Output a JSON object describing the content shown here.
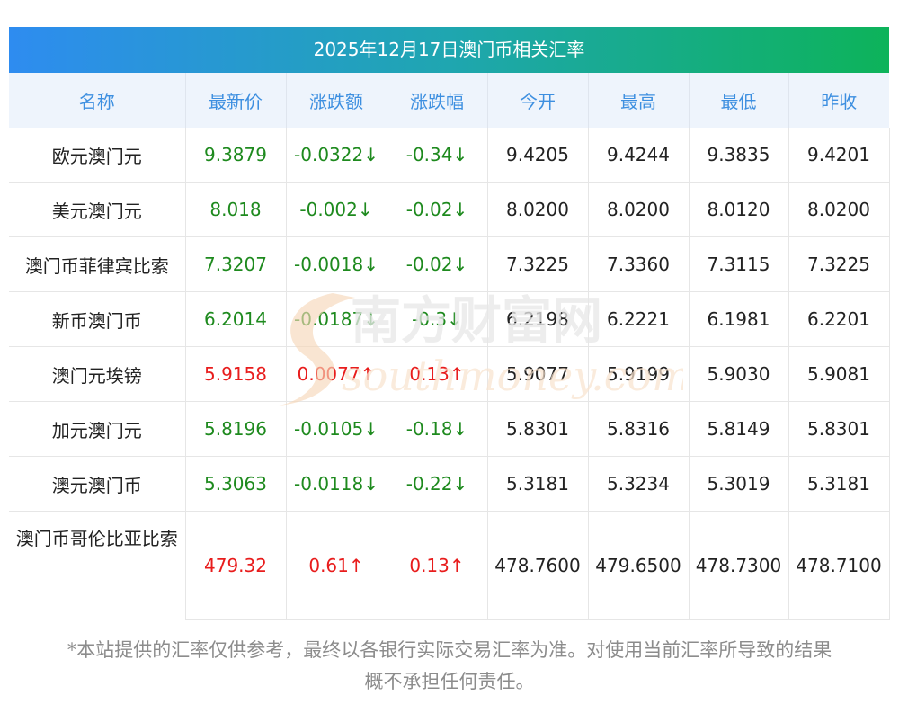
{
  "title": "2025年12月17日澳门币相关汇率",
  "headers": [
    "名称",
    "最新价",
    "涨跌额",
    "涨跌幅",
    "今开",
    "最高",
    "最低",
    "昨收"
  ],
  "rows": [
    {
      "name": "欧元澳门元",
      "latest": "9.3879",
      "change": "-0.0322↓",
      "pct": "-0.34↓",
      "open": "9.4205",
      "high": "9.4244",
      "low": "9.3835",
      "prev": "9.4201",
      "trend": "down"
    },
    {
      "name": "美元澳门元",
      "latest": "8.018",
      "change": "-0.002↓",
      "pct": "-0.02↓",
      "open": "8.0200",
      "high": "8.0200",
      "low": "8.0120",
      "prev": "8.0200",
      "trend": "down"
    },
    {
      "name": "澳门币菲律宾比索",
      "latest": "7.3207",
      "change": "-0.0018↓",
      "pct": "-0.02↓",
      "open": "7.3225",
      "high": "7.3360",
      "low": "7.3115",
      "prev": "7.3225",
      "trend": "down"
    },
    {
      "name": "新币澳门币",
      "latest": "6.2014",
      "change": "-0.0187↓",
      "pct": "-0.3↓",
      "open": "6.2198",
      "high": "6.2221",
      "low": "6.1981",
      "prev": "6.2201",
      "trend": "down"
    },
    {
      "name": "澳门元埃镑",
      "latest": "5.9158",
      "change": "0.0077↑",
      "pct": "0.13↑",
      "open": "5.9077",
      "high": "5.9199",
      "low": "5.9030",
      "prev": "5.9081",
      "trend": "up"
    },
    {
      "name": "加元澳门元",
      "latest": "5.8196",
      "change": "-0.0105↓",
      "pct": "-0.18↓",
      "open": "5.8301",
      "high": "5.8316",
      "low": "5.8149",
      "prev": "5.8301",
      "trend": "down"
    },
    {
      "name": "澳元澳门币",
      "latest": "5.3063",
      "change": "-0.0118↓",
      "pct": "-0.22↓",
      "open": "5.3181",
      "high": "5.3234",
      "low": "5.3019",
      "prev": "5.3181",
      "trend": "down"
    },
    {
      "name": "澳门币哥伦比亚比索",
      "latest": "479.32",
      "change": "0.61↑",
      "pct": "0.13↑",
      "open": "478.7600",
      "high": "479.6500",
      "low": "478.7300",
      "prev": "478.7100",
      "trend": "up"
    }
  ],
  "footer": {
    "line1": "*本站提供的汇率仅供参考，最终以各银行实际交易汇率为准。对使用当前汇率所导致的结果",
    "line2": "概不承担任何责任。"
  },
  "watermark": {
    "cn": "南方财富网",
    "en": "southmoney.com"
  },
  "colors": {
    "up": "#e81c1c",
    "down": "#1e8a1e",
    "header_text": "#3d8fe0",
    "header_bg": "#eef4fc"
  }
}
